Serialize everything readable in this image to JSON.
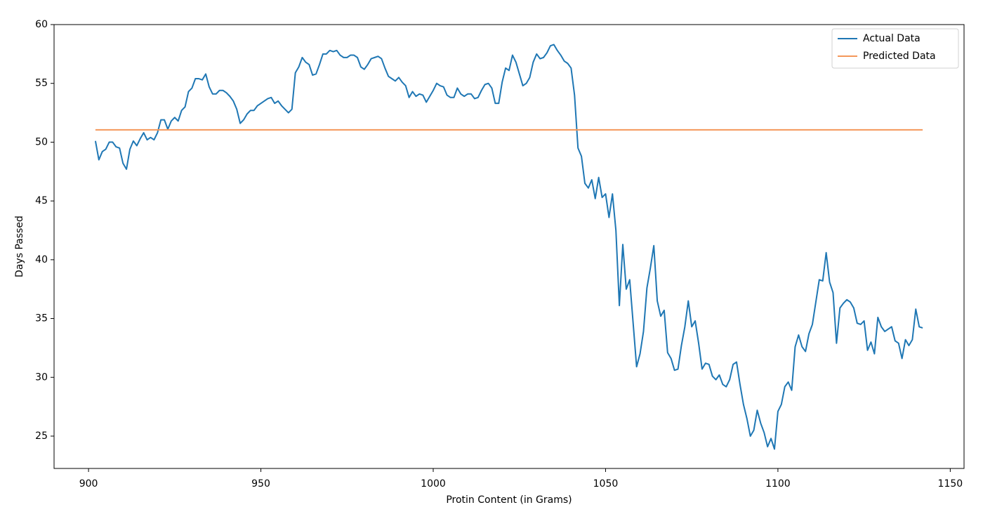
{
  "chart_data": {
    "type": "line",
    "xlabel": "Protin Content (in Grams)",
    "ylabel": "Days Passed",
    "xlim": [
      890,
      1154
    ],
    "xticks": [
      900,
      950,
      1000,
      1050,
      1100,
      1150
    ],
    "ylim": [
      22.25,
      60
    ],
    "yticks": [
      25,
      30,
      35,
      40,
      45,
      50,
      55,
      60
    ],
    "grid": false,
    "legend": "upper right",
    "series": [
      {
        "name": "Actual Data",
        "color": "#1f77b4",
        "x": [
          902,
          903,
          904,
          905,
          906,
          907,
          908,
          909,
          910,
          911,
          912,
          913,
          914,
          915,
          916,
          917,
          918,
          919,
          920,
          921,
          922,
          923,
          924,
          925,
          926,
          927,
          928,
          929,
          930,
          931,
          932,
          933,
          934,
          935,
          936,
          937,
          938,
          939,
          940,
          941,
          942,
          943,
          944,
          945,
          946,
          947,
          948,
          949,
          950,
          951,
          952,
          953,
          954,
          955,
          956,
          957,
          958,
          959,
          960,
          961,
          962,
          963,
          964,
          965,
          966,
          967,
          968,
          969,
          970,
          971,
          972,
          973,
          974,
          975,
          976,
          977,
          978,
          979,
          980,
          981,
          982,
          983,
          984,
          985,
          986,
          987,
          988,
          989,
          990,
          991,
          992,
          993,
          994,
          995,
          996,
          997,
          998,
          999,
          1000,
          1001,
          1002,
          1003,
          1004,
          1005,
          1006,
          1007,
          1008,
          1009,
          1010,
          1011,
          1012,
          1013,
          1014,
          1015,
          1016,
          1017,
          1018,
          1019,
          1020,
          1021,
          1022,
          1023,
          1024,
          1025,
          1026,
          1027,
          1028,
          1029,
          1030,
          1031,
          1032,
          1033,
          1034,
          1035,
          1036,
          1037,
          1038,
          1039,
          1040,
          1041,
          1042,
          1043,
          1044,
          1045,
          1046,
          1047,
          1048,
          1049,
          1050,
          1051,
          1052,
          1053,
          1054,
          1055,
          1056,
          1057,
          1058,
          1059,
          1060,
          1061,
          1062,
          1063,
          1064,
          1065,
          1066,
          1067,
          1068,
          1069,
          1070,
          1071,
          1072,
          1073,
          1074,
          1075,
          1076,
          1077,
          1078,
          1079,
          1080,
          1081,
          1082,
          1083,
          1084,
          1085,
          1086,
          1087,
          1088,
          1089,
          1090,
          1091,
          1092,
          1093,
          1094,
          1095,
          1096,
          1097,
          1098,
          1099,
          1100,
          1101,
          1102,
          1103,
          1104,
          1105,
          1106,
          1107,
          1108,
          1109,
          1110,
          1111,
          1112,
          1113,
          1114,
          1115,
          1116,
          1117,
          1118,
          1119,
          1120,
          1121,
          1122,
          1123,
          1124,
          1125,
          1126,
          1127,
          1128,
          1129,
          1130,
          1131,
          1132,
          1133,
          1134,
          1135,
          1136,
          1137,
          1138,
          1139,
          1140,
          1141,
          1142
        ],
        "values": [
          50.1,
          48.5,
          49.2,
          49.4,
          50.0,
          50.0,
          49.6,
          49.5,
          48.2,
          47.7,
          49.4,
          50.1,
          49.7,
          50.3,
          50.8,
          50.2,
          50.4,
          50.2,
          50.8,
          51.9,
          51.9,
          51.1,
          51.8,
          52.1,
          51.8,
          52.7,
          53.0,
          54.3,
          54.6,
          55.4,
          55.4,
          55.3,
          55.8,
          54.7,
          54.1,
          54.1,
          54.4,
          54.4,
          54.2,
          53.9,
          53.5,
          52.8,
          51.6,
          51.9,
          52.4,
          52.7,
          52.7,
          53.1,
          53.3,
          53.5,
          53.7,
          53.8,
          53.3,
          53.5,
          53.1,
          52.8,
          52.5,
          52.8,
          55.9,
          56.4,
          57.2,
          56.8,
          56.6,
          55.7,
          55.8,
          56.6,
          57.5,
          57.5,
          57.8,
          57.7,
          57.8,
          57.4,
          57.2,
          57.2,
          57.4,
          57.4,
          57.2,
          56.4,
          56.2,
          56.6,
          57.1,
          57.2,
          57.3,
          57.1,
          56.3,
          55.6,
          55.4,
          55.2,
          55.5,
          55.1,
          54.8,
          53.8,
          54.3,
          53.9,
          54.1,
          54.0,
          53.4,
          53.9,
          54.4,
          55.0,
          54.8,
          54.7,
          54.0,
          53.8,
          53.8,
          54.6,
          54.1,
          53.9,
          54.1,
          54.1,
          53.7,
          53.8,
          54.4,
          54.9,
          55.0,
          54.6,
          53.3,
          53.3,
          55.1,
          56.3,
          56.1,
          57.4,
          56.8,
          55.8,
          54.8,
          55.0,
          55.5,
          56.8,
          57.5,
          57.1,
          57.2,
          57.6,
          58.2,
          58.3,
          57.8,
          57.4,
          56.9,
          56.7,
          56.3,
          54.0,
          49.5,
          48.8,
          46.5,
          46.1,
          46.8,
          45.2,
          47.0,
          45.3,
          45.6,
          43.6,
          45.6,
          42.5,
          36.1,
          41.3,
          37.5,
          38.3,
          34.6,
          30.9,
          32.0,
          33.9,
          37.6,
          39.3,
          41.2,
          36.5,
          35.2,
          35.7,
          32.1,
          31.6,
          30.6,
          30.7,
          32.7,
          34.3,
          36.5,
          34.3,
          34.8,
          32.9,
          30.7,
          31.2,
          31.1,
          30.1,
          29.8,
          30.2,
          29.4,
          29.2,
          29.8,
          31.1,
          31.3,
          29.4,
          27.7,
          26.5,
          25.0,
          25.5,
          27.2,
          26.1,
          25.3,
          24.1,
          24.8,
          23.9,
          27.1,
          27.7,
          29.2,
          29.6,
          28.9,
          32.6,
          33.6,
          32.6,
          32.2,
          33.7,
          34.5,
          36.4,
          38.3,
          38.2,
          40.6,
          38.1,
          37.2,
          32.9,
          35.9,
          36.3,
          36.6,
          36.4,
          35.9,
          34.6,
          34.5,
          34.8,
          32.3,
          33.0,
          32.0,
          35.1,
          34.3,
          33.9,
          34.1,
          34.3,
          33.1,
          32.9,
          31.6,
          33.2,
          32.7,
          33.2,
          35.8,
          34.3,
          34.2
        ]
      },
      {
        "name": "Predicted Data",
        "color": "#f4975a",
        "x": [
          902,
          1142
        ],
        "values": [
          51.05,
          51.05
        ]
      }
    ]
  }
}
